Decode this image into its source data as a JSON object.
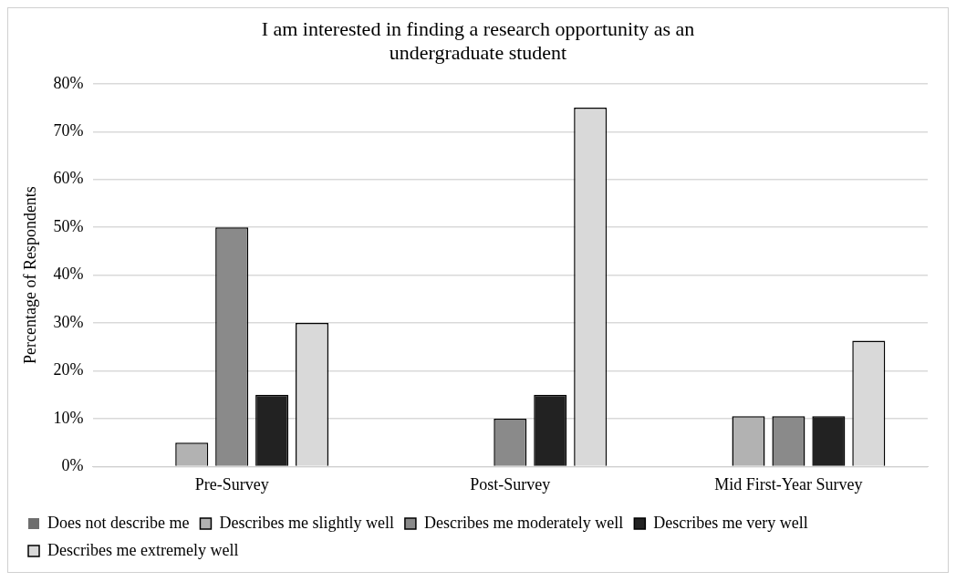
{
  "chart_data": {
    "type": "bar",
    "title": "I am interested in finding a research opportunity as an undergraduate student",
    "ylabel": "Percentage of Respondents",
    "categories": [
      "Pre-Survey",
      "Post-Survey",
      "Mid First-Year Survey"
    ],
    "series": [
      {
        "name": "Does not describe me",
        "color": "#6e6e6e",
        "values": [
          0,
          0,
          0
        ]
      },
      {
        "name": "Describes me slightly well",
        "color": "#b2b2b2",
        "values": [
          5,
          0,
          10.5
        ]
      },
      {
        "name": "Describes me moderately well",
        "color": "#8a8a8a",
        "values": [
          50,
          10,
          10.5
        ]
      },
      {
        "name": "Describes me very well",
        "color": "#222222",
        "values": [
          15,
          15,
          10.5
        ]
      },
      {
        "name": "Describes me extremely well",
        "color": "#d9d9d9",
        "values": [
          30,
          75,
          26.3
        ]
      }
    ],
    "ylim": [
      0,
      80
    ],
    "yticks": [
      {
        "value": 0,
        "label": "0%"
      },
      {
        "value": 10,
        "label": "10%"
      },
      {
        "value": 20,
        "label": "20%"
      },
      {
        "value": 30,
        "label": "30%"
      },
      {
        "value": 40,
        "label": "40%"
      },
      {
        "value": 50,
        "label": "50%"
      },
      {
        "value": 60,
        "label": "60%"
      },
      {
        "value": 70,
        "label": "70%"
      },
      {
        "value": 80,
        "label": "80%"
      }
    ],
    "grid": "y",
    "legend": "bottom"
  }
}
